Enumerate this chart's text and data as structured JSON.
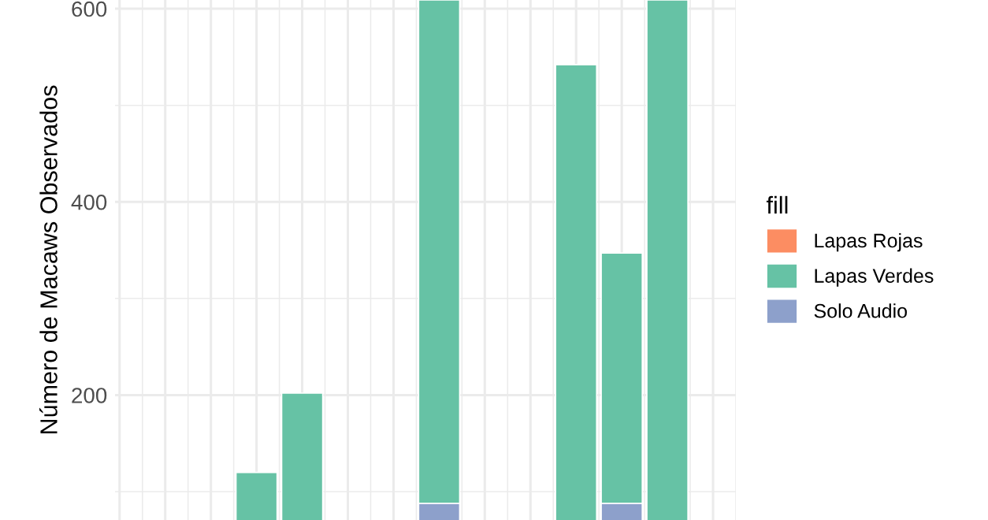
{
  "chart_data": {
    "type": "bar",
    "stacked": true,
    "ylabel": "Número de Macaws Observados",
    "legend_title": "fill",
    "categories": [
      null,
      null,
      null,
      null,
      null,
      null,
      null,
      null,
      null,
      null,
      null,
      null,
      null,
      null
    ],
    "series": [
      {
        "name": "Solo Audio",
        "color": "#8da0cb",
        "values": [
          null,
          null,
          null,
          null,
          null,
          null,
          null,
          88,
          null,
          null,
          null,
          88,
          null,
          null
        ]
      },
      {
        "name": "Lapas Verdes",
        "color": "#66c2a5",
        "values": [
          null,
          null,
          null,
          120,
          202,
          null,
          null,
          521,
          null,
          null,
          542,
          259,
          609,
          null
        ]
      },
      {
        "name": "Lapas Rojas",
        "color": "#fc8d62",
        "values": [
          null,
          null,
          null,
          null,
          null,
          null,
          null,
          null,
          null,
          null,
          null,
          null,
          null,
          null
        ]
      }
    ],
    "ylim": [
      70.7,
      609
    ],
    "yticks": [
      200,
      400,
      600
    ],
    "grid": true,
    "legend": "right",
    "tick_labels": "y"
  }
}
